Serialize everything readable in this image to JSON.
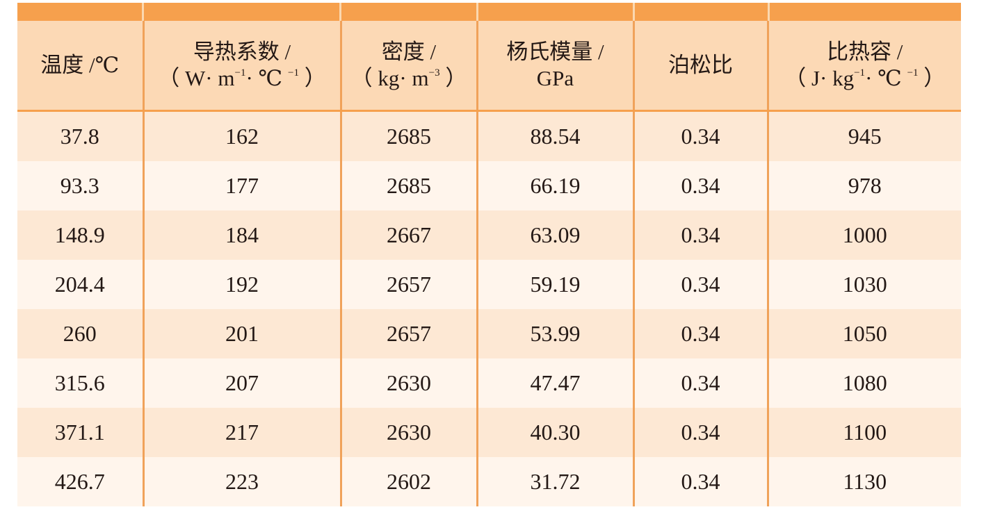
{
  "headers": [
    {
      "line1": "温度 /℃",
      "line2": ""
    },
    {
      "line1": "导热系数 /",
      "line2": {
        "pre": "（ W· m",
        "sup1": "−1",
        "mid": "·  ℃ ",
        "sup2": "−1",
        "post": " ）"
      }
    },
    {
      "line1": "密度 /",
      "line2": {
        "pre": "（ kg· m",
        "sup1": "−3",
        "mid": "",
        "sup2": "",
        "post": " ）"
      }
    },
    {
      "line1": "杨氏模量 /",
      "line2": "GPa"
    },
    {
      "line1": "泊松比",
      "line2": ""
    },
    {
      "line1": "比热容 /",
      "line2": {
        "pre": "（ J· kg",
        "sup1": "−1",
        "mid": "·  ℃ ",
        "sup2": "−1",
        "post": " ）"
      }
    }
  ],
  "rows": [
    [
      "37.8",
      "162",
      "2685",
      "88.54",
      "0.34",
      "945"
    ],
    [
      "93.3",
      "177",
      "2685",
      "66.19",
      "0.34",
      "978"
    ],
    [
      "148.9",
      "184",
      "2667",
      "63.09",
      "0.34",
      "1000"
    ],
    [
      "204.4",
      "192",
      "2657",
      "59.19",
      "0.34",
      "1030"
    ],
    [
      "260",
      "201",
      "2657",
      "53.99",
      "0.34",
      "1050"
    ],
    [
      "315.6",
      "207",
      "2630",
      "47.47",
      "0.34",
      "1080"
    ],
    [
      "371.1",
      "217",
      "2630",
      "40.30",
      "0.34",
      "1100"
    ],
    [
      "426.7",
      "223",
      "2602",
      "31.72",
      "0.34",
      "1130"
    ]
  ],
  "colors": {
    "band": "#f6a04d",
    "header_bg": "#fcd9b5",
    "row_dark": "#fde8d4",
    "row_light": "#fff5ec"
  }
}
